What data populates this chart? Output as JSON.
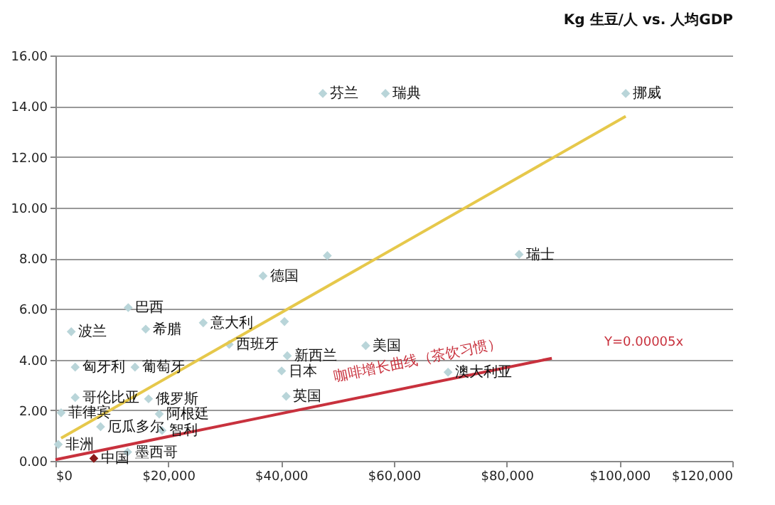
{
  "chart_data": {
    "type": "scatter",
    "title": "Kg 生豆/人 vs. 人均GDP",
    "grid": "y",
    "xlim": [
      0,
      120000
    ],
    "xticks": [
      {
        "value": 0,
        "label": "$0"
      },
      {
        "value": 20000,
        "label": "$20,000"
      },
      {
        "value": 40000,
        "label": "$40,000"
      },
      {
        "value": 60000,
        "label": "$60,000"
      },
      {
        "value": 80000,
        "label": "$80,000"
      },
      {
        "value": 100000,
        "label": "$100,000"
      },
      {
        "value": 120000,
        "label": "$120,000"
      }
    ],
    "ylim": [
      0,
      16
    ],
    "yticks": [
      {
        "value": 0,
        "label": "0.00"
      },
      {
        "value": 2,
        "label": "2.00"
      },
      {
        "value": 4,
        "label": "4.00"
      },
      {
        "value": 6,
        "label": "6.00"
      },
      {
        "value": 8,
        "label": "8.00"
      },
      {
        "value": 10,
        "label": "10.00"
      },
      {
        "value": 12,
        "label": "12.00"
      },
      {
        "value": 14,
        "label": "14.00"
      },
      {
        "value": 16,
        "label": "16.00"
      }
    ],
    "series": [
      {
        "marker": "diamond",
        "x": [
          47400,
          58500,
          101100,
          36800,
          48200,
          82200,
          40600,
          12900,
          2800,
          16000,
          26200,
          30800,
          14100,
          3500,
          41100,
          40100,
          40900,
          55000,
          69600,
          3500,
          16500,
          1000,
          8000,
          18400,
          18900,
          12800,
          500,
          6800
        ],
        "values": [
          14.5,
          14.5,
          14.5,
          7.3,
          8.1,
          8.15,
          5.5,
          6.05,
          5.1,
          5.2,
          5.45,
          4.6,
          3.7,
          3.7,
          4.15,
          3.55,
          2.55,
          4.55,
          3.5,
          2.5,
          2.45,
          1.9,
          1.35,
          1.85,
          1.2,
          0.35,
          0.65,
          0.1
        ],
        "colors": [
          "#b9d5d9",
          "#b9d5d9",
          "#b9d5d9",
          "#b9d5d9",
          "#b9d5d9",
          "#b9d5d9",
          "#b9d5d9",
          "#b9d5d9",
          "#b9d5d9",
          "#b9d5d9",
          "#b9d5d9",
          "#b9d5d9",
          "#b9d5d9",
          "#b9d5d9",
          "#b9d5d9",
          "#b9d5d9",
          "#b9d5d9",
          "#b9d5d9",
          "#b9d5d9",
          "#b9d5d9",
          "#b9d5d9",
          "#b9d5d9",
          "#b9d5d9",
          "#b9d5d9",
          "#b9d5d9",
          "#b9d5d9",
          "#b9d5d9",
          "#8b1a1a"
        ]
      },
      {
        "type": "line",
        "color": "#e6c84b",
        "x": [
          1000,
          101100
        ],
        "values": [
          0.9,
          13.6
        ]
      },
      {
        "type": "line",
        "color": "#c8313d",
        "x": [
          0,
          88000
        ],
        "values": [
          0.05,
          4.05
        ]
      }
    ],
    "annotations": [
      {
        "text": "芬兰",
        "x": 47400,
        "y": 14.5
      },
      {
        "text": "瑞典",
        "x": 58500,
        "y": 14.5
      },
      {
        "text": "挪威",
        "x": 101100,
        "y": 14.5
      },
      {
        "text": "德国",
        "x": 36800,
        "y": 7.3
      },
      {
        "text": "瑞士",
        "x": 82200,
        "y": 8.15
      },
      {
        "text": "巴西",
        "x": 12900,
        "y": 6.05
      },
      {
        "text": "波兰",
        "x": 2800,
        "y": 5.1
      },
      {
        "text": "希腊",
        "x": 16000,
        "y": 5.2
      },
      {
        "text": "意大利",
        "x": 26200,
        "y": 5.45
      },
      {
        "text": "西班牙",
        "x": 30800,
        "y": 4.6
      },
      {
        "text": "葡萄牙",
        "x": 14100,
        "y": 3.7
      },
      {
        "text": "匈牙利",
        "x": 3500,
        "y": 3.7
      },
      {
        "text": "新西兰",
        "x": 41100,
        "y": 4.15
      },
      {
        "text": "日本",
        "x": 40100,
        "y": 3.55
      },
      {
        "text": "英国",
        "x": 40900,
        "y": 2.55
      },
      {
        "text": "美国",
        "x": 55000,
        "y": 4.55
      },
      {
        "text": "澳大利亚",
        "x": 69600,
        "y": 3.5
      },
      {
        "text": "哥伦比亚",
        "x": 3500,
        "y": 2.5
      },
      {
        "text": "俄罗斯",
        "x": 16500,
        "y": 2.45
      },
      {
        "text": "菲律宾",
        "x": 1000,
        "y": 1.9
      },
      {
        "text": "厄瓜多尔",
        "x": 8000,
        "y": 1.35
      },
      {
        "text": "阿根廷",
        "x": 18400,
        "y": 1.85
      },
      {
        "text": "智利",
        "x": 18900,
        "y": 1.2
      },
      {
        "text": "墨西哥",
        "x": 12800,
        "y": 0.35
      },
      {
        "text": "非洲",
        "x": 500,
        "y": 0.65
      },
      {
        "text": "中国",
        "x": 6800,
        "y": 0.1
      },
      "咖啡增长曲线（茶饮习惯）",
      "Y=0.00005x"
    ]
  }
}
